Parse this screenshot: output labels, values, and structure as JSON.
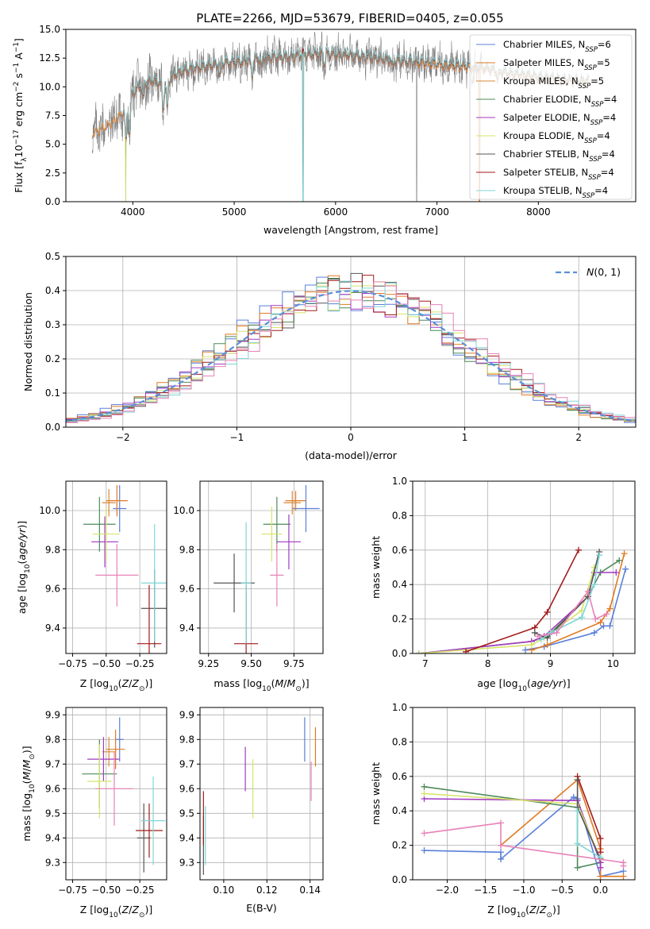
{
  "figure": {
    "title": "PLATE=2266, MJD=53679, FIBERID=0405, z=0.055"
  },
  "colors": {
    "chab_miles": "#5a7fd8",
    "salp_miles": "#e07a22",
    "krou_miles": "#d98a3a",
    "chab_elodie": "#4f8a5b",
    "salp_elodie": "#a33ac2",
    "krou_elodie": "#d7e36a",
    "chab_stelib": "#555555",
    "salp_stelib": "#a31a1a",
    "krou_stelib": "#7fd6d6",
    "pink": "#e882b8",
    "data": "#808080",
    "gaussian": "#5b8fd8"
  },
  "chart_data": [
    {
      "id": "spectrum",
      "type": "line",
      "title": "PLATE=2266, MJD=53679, FIBERID=0405, z=0.055",
      "xlabel": "wavelength [Angstrom, rest frame]",
      "ylabel": "Flux [f_λ 10^-17 erg cm^-2 s^-1 A^-1]",
      "xlim": [
        3340,
        8960
      ],
      "ylim": [
        0,
        15
      ],
      "xticks": [
        4000,
        5000,
        6000,
        7000,
        8000
      ],
      "yticks": [
        0.0,
        2.5,
        5.0,
        7.5,
        10.0,
        12.5,
        15.0
      ],
      "grid": false,
      "legend": "top-right",
      "legend_entries": [
        "Chabrier MILES, N_SSP=6",
        "Salpeter MILES, N_SSP=5",
        "Kroupa MILES, N_SSP=5",
        "Chabrier ELODIE, N_SSP=4",
        "Salpeter ELODIE, N_SSP=4",
        "Kroupa ELODIE, N_SSP=4",
        "Chabrier STELIB, N_SSP=4",
        "Salpeter STELIB, N_SSP=4",
        "Kroupa STELIB, N_SSP=4"
      ],
      "continuum": [
        [
          3600,
          6.0
        ],
        [
          3700,
          6.5
        ],
        [
          3800,
          7.0
        ],
        [
          3900,
          7.8
        ],
        [
          4000,
          9.5
        ],
        [
          4100,
          10.3
        ],
        [
          4200,
          10.6
        ],
        [
          4300,
          10.2
        ],
        [
          4400,
          11.0
        ],
        [
          4500,
          11.4
        ],
        [
          4700,
          11.8
        ],
        [
          4900,
          12.1
        ],
        [
          5100,
          12.2
        ],
        [
          5300,
          12.6
        ],
        [
          5500,
          12.6
        ],
        [
          5700,
          12.8
        ],
        [
          5900,
          12.9
        ],
        [
          6100,
          12.8
        ],
        [
          6300,
          12.6
        ],
        [
          6500,
          12.4
        ],
        [
          6700,
          12.2
        ],
        [
          6900,
          12.1
        ],
        [
          7100,
          11.9
        ],
        [
          7300,
          11.8
        ],
        [
          7500,
          11.6
        ],
        [
          7700,
          11.2
        ],
        [
          7900,
          11.0
        ],
        [
          8100,
          10.8
        ],
        [
          8300,
          10.6
        ],
        [
          8500,
          10.5
        ],
        [
          8700,
          10.6
        ]
      ],
      "dropouts": [
        3930,
        5680,
        6800,
        7420
      ]
    },
    {
      "id": "residuals",
      "type": "line",
      "xlabel": "(data-model)/error",
      "ylabel": "Normed distribution",
      "xlim": [
        -2.5,
        2.5
      ],
      "ylim": [
        0.0,
        0.5
      ],
      "xticks": [
        -2,
        -1,
        0,
        1,
        2
      ],
      "yticks": [
        0.0,
        0.1,
        0.2,
        0.3,
        0.4,
        0.5
      ],
      "grid": true,
      "legend": "top-right",
      "legend_entries": [
        "N(0,1)"
      ],
      "bin_width": 0.1
    },
    {
      "id": "age_vs_Z",
      "type": "scatter",
      "xlabel": "Z [log10(Z/Z⊙)]",
      "ylabel": "age [log10(age/yr)]",
      "xlim": [
        -0.8,
        -0.05
      ],
      "ylim": [
        9.27,
        10.15
      ],
      "xticks": [
        -0.75,
        -0.5,
        -0.25
      ],
      "yticks": [
        9.4,
        9.6,
        9.8,
        10.0
      ],
      "grid": true,
      "points": [
        {
          "c": "chab_miles",
          "x": -0.4,
          "y": 10.01,
          "ex": 0.05,
          "ey": 0.12
        },
        {
          "c": "salp_miles",
          "x": -0.42,
          "y": 10.05,
          "ex": 0.08,
          "ey": 0.08
        },
        {
          "c": "krou_miles",
          "x": -0.48,
          "y": 10.04,
          "ex": 0.05,
          "ey": 0.07
        },
        {
          "c": "chab_elodie",
          "x": -0.55,
          "y": 9.93,
          "ex": 0.12,
          "ey": 0.14
        },
        {
          "c": "salp_elodie",
          "x": -0.51,
          "y": 9.84,
          "ex": 0.1,
          "ey": 0.13
        },
        {
          "c": "krou_elodie",
          "x": -0.5,
          "y": 9.88,
          "ex": 0.1,
          "ey": 0.14
        },
        {
          "c": "chab_stelib",
          "x": -0.14,
          "y": 9.5,
          "ex": 0.1,
          "ey": 0.2
        },
        {
          "c": "salp_stelib",
          "x": -0.18,
          "y": 9.32,
          "ex": 0.09,
          "ey": 0.3
        },
        {
          "c": "krou_stelib",
          "x": -0.14,
          "y": 9.63,
          "ex": 0.1,
          "ey": 0.3
        },
        {
          "c": "pink",
          "x": -0.42,
          "y": 9.67,
          "ex": 0.16,
          "ey": 0.16
        }
      ]
    },
    {
      "id": "age_vs_mass",
      "type": "scatter",
      "xlabel": "mass [log10(M/M⊙)]",
      "ylabel": "",
      "xlim": [
        9.2,
        9.92
      ],
      "ylim": [
        9.27,
        10.15
      ],
      "xticks": [
        9.25,
        9.5,
        9.75
      ],
      "yticks": [
        9.4,
        9.6,
        9.8,
        10.0
      ],
      "grid": true,
      "points": [
        {
          "c": "chab_miles",
          "x": 9.82,
          "y": 10.01,
          "ex": 0.08,
          "ey": 0.12
        },
        {
          "c": "salp_miles",
          "x": 9.76,
          "y": 10.05,
          "ex": 0.06,
          "ey": 0.05
        },
        {
          "c": "krou_miles",
          "x": 9.74,
          "y": 10.04,
          "ex": 0.05,
          "ey": 0.06
        },
        {
          "c": "chab_elodie",
          "x": 9.65,
          "y": 9.93,
          "ex": 0.08,
          "ey": 0.14
        },
        {
          "c": "salp_elodie",
          "x": 9.72,
          "y": 9.84,
          "ex": 0.07,
          "ey": 0.14
        },
        {
          "c": "krou_elodie",
          "x": 9.62,
          "y": 9.88,
          "ex": 0.06,
          "ey": 0.14
        },
        {
          "c": "chab_stelib",
          "x": 9.4,
          "y": 9.63,
          "ex": 0.12,
          "ey": 0.15
        },
        {
          "c": "salp_stelib",
          "x": 9.47,
          "y": 9.32,
          "ex": 0.07,
          "ey": 0.3
        },
        {
          "c": "krou_stelib",
          "x": 9.47,
          "y": 9.63,
          "ex": 0.03,
          "ey": 0.31
        },
        {
          "c": "pink",
          "x": 9.65,
          "y": 9.67,
          "ex": 0.04,
          "ey": 0.16
        }
      ]
    },
    {
      "id": "mass_weight_vs_age",
      "type": "line",
      "xlabel": "age [log10(age/yr)]",
      "ylabel": "mass weight",
      "xlim": [
        6.8,
        10.35
      ],
      "ylim": [
        0.0,
        1.0
      ],
      "xticks": [
        7,
        8,
        9,
        10
      ],
      "yticks": [
        0.0,
        0.2,
        0.4,
        0.6,
        0.8,
        1.0
      ],
      "grid": true,
      "series": [
        {
          "c": "chab_miles",
          "pts": [
            [
              8.6,
              0.02
            ],
            [
              8.9,
              0.04
            ],
            [
              9.7,
              0.12
            ],
            [
              9.85,
              0.16
            ],
            [
              9.95,
              0.16
            ],
            [
              10.2,
              0.49
            ]
          ]
        },
        {
          "c": "salp_miles",
          "pts": [
            [
              8.7,
              0.02
            ],
            [
              8.95,
              0.05
            ],
            [
              9.8,
              0.18
            ],
            [
              9.95,
              0.26
            ],
            [
              10.18,
              0.58
            ]
          ]
        },
        {
          "c": "chab_elodie",
          "pts": [
            [
              6.9,
              0.0
            ],
            [
              8.7,
              0.07
            ],
            [
              8.95,
              0.1
            ],
            [
              9.6,
              0.33
            ],
            [
              9.8,
              0.47
            ],
            [
              10.1,
              0.54
            ]
          ]
        },
        {
          "c": "salp_elodie",
          "pts": [
            [
              6.9,
              0.0
            ],
            [
              8.7,
              0.07
            ],
            [
              8.9,
              0.1
            ],
            [
              9.6,
              0.33
            ],
            [
              9.7,
              0.47
            ],
            [
              10.05,
              0.47
            ]
          ]
        },
        {
          "c": "krou_elodie",
          "pts": [
            [
              6.9,
              0.0
            ],
            [
              8.7,
              0.05
            ],
            [
              8.9,
              0.09
            ],
            [
              9.5,
              0.25
            ],
            [
              9.7,
              0.5
            ]
          ]
        },
        {
          "c": "salp_stelib",
          "pts": [
            [
              7.65,
              0.01
            ],
            [
              8.75,
              0.15
            ],
            [
              8.95,
              0.24
            ],
            [
              9.45,
              0.6
            ]
          ]
        },
        {
          "c": "chab_stelib",
          "pts": [
            [
              8.75,
              0.12
            ],
            [
              8.95,
              0.09
            ],
            [
              9.6,
              0.33
            ],
            [
              9.78,
              0.59
            ]
          ]
        },
        {
          "c": "krou_stelib",
          "pts": [
            [
              8.85,
              0.08
            ],
            [
              9.0,
              0.12
            ],
            [
              9.5,
              0.21
            ],
            [
              9.7,
              0.4
            ],
            [
              9.78,
              0.57
            ]
          ]
        },
        {
          "c": "pink",
          "pts": [
            [
              8.8,
              0.1
            ],
            [
              9.1,
              0.12
            ],
            [
              9.6,
              0.36
            ],
            [
              9.72,
              0.2
            ],
            [
              9.9,
              0.23
            ]
          ]
        }
      ]
    },
    {
      "id": "mass_vs_Z",
      "type": "scatter",
      "xlabel": "Z [log10(Z/Z⊙)]",
      "ylabel": "mass [log10(M/M⊙)]",
      "xlim": [
        -0.8,
        -0.05
      ],
      "ylim": [
        9.23,
        9.93
      ],
      "xticks": [
        -0.75,
        -0.5,
        -0.25
      ],
      "yticks": [
        9.3,
        9.4,
        9.5,
        9.6,
        9.7,
        9.8,
        9.9
      ],
      "grid": true,
      "points": [
        {
          "c": "chab_miles",
          "x": -0.4,
          "y": 9.8,
          "ex": 0.03,
          "ey": 0.09
        },
        {
          "c": "salp_miles",
          "x": -0.43,
          "y": 9.76,
          "ex": 0.07,
          "ey": 0.08
        },
        {
          "c": "krou_miles",
          "x": -0.48,
          "y": 9.75,
          "ex": 0.05,
          "ey": 0.06
        },
        {
          "c": "chab_elodie",
          "x": -0.55,
          "y": 9.66,
          "ex": 0.13,
          "ey": 0.14
        },
        {
          "c": "salp_elodie",
          "x": -0.52,
          "y": 9.72,
          "ex": 0.12,
          "ey": 0.09
        },
        {
          "c": "krou_elodie",
          "x": -0.55,
          "y": 9.63,
          "ex": 0.09,
          "ey": 0.15
        },
        {
          "c": "chab_stelib",
          "x": -0.22,
          "y": 9.4,
          "ex": 0.05,
          "ey": 0.14
        },
        {
          "c": "salp_stelib",
          "x": -0.18,
          "y": 9.43,
          "ex": 0.1,
          "ey": 0.11
        },
        {
          "c": "krou_stelib",
          "x": -0.15,
          "y": 9.47,
          "ex": 0.09,
          "ey": 0.18
        },
        {
          "c": "pink",
          "x": -0.44,
          "y": 9.6,
          "ex": 0.14,
          "ey": 0.15
        }
      ]
    },
    {
      "id": "mass_vs_ebv",
      "type": "scatter",
      "xlabel": "E(B-V)",
      "ylabel": "",
      "xlim": [
        0.089,
        0.146
      ],
      "ylim": [
        9.23,
        9.93
      ],
      "xticks": [
        0.1,
        0.12,
        0.14
      ],
      "yticks": [
        9.3,
        9.4,
        9.5,
        9.6,
        9.7,
        9.8,
        9.9
      ],
      "grid": true,
      "points": [
        {
          "c": "chab_miles",
          "x": 0.1375,
          "y": 9.8,
          "ex": 0,
          "ey": 0.09
        },
        {
          "c": "salp_miles",
          "x": 0.1425,
          "y": 9.77,
          "ex": 0,
          "ey": 0.08
        },
        {
          "c": "salp_elodie",
          "x": 0.11,
          "y": 9.68,
          "ex": 0,
          "ey": 0.09
        },
        {
          "c": "krou_elodie",
          "x": 0.1135,
          "y": 9.6,
          "ex": 0,
          "ey": 0.12
        },
        {
          "c": "chab_stelib",
          "x": 0.0906,
          "y": 9.37,
          "ex": 0,
          "ey": 0.12
        },
        {
          "c": "salp_stelib",
          "x": 0.0906,
          "y": 9.48,
          "ex": 0,
          "ey": 0.11
        },
        {
          "c": "krou_stelib",
          "x": 0.0915,
          "y": 9.41,
          "ex": 0,
          "ey": 0.12
        },
        {
          "c": "pink",
          "x": 0.1405,
          "y": 9.63,
          "ex": 0,
          "ey": 0.08
        }
      ]
    },
    {
      "id": "mass_weight_vs_Z",
      "type": "line",
      "xlabel": "Z [log10(Z/Z⊙)]",
      "ylabel": "mass weight",
      "xlim": [
        -2.45,
        0.45
      ],
      "ylim": [
        0.0,
        1.0
      ],
      "xticks": [
        -2.0,
        -1.5,
        -1.0,
        -0.5,
        0.0
      ],
      "yticks": [
        0.0,
        0.2,
        0.4,
        0.6,
        0.8,
        1.0
      ],
      "grid": true,
      "series": [
        {
          "c": "chab_miles",
          "pts": [
            [
              -2.3,
              0.17
            ],
            [
              -1.3,
              0.16
            ],
            [
              -1.3,
              0.12
            ],
            [
              -0.35,
              0.48
            ],
            [
              -0.3,
              0.47
            ],
            [
              0.0,
              0.02
            ],
            [
              0.3,
              0.05
            ]
          ]
        },
        {
          "c": "salp_miles",
          "pts": [
            [
              -1.3,
              0.2
            ],
            [
              -0.3,
              0.58
            ],
            [
              0.0,
              0.18
            ],
            [
              0.0,
              0.02
            ],
            [
              0.3,
              0.02
            ]
          ]
        },
        {
          "c": "chab_elodie",
          "pts": [
            [
              -2.3,
              0.54
            ],
            [
              -0.3,
              0.42
            ],
            [
              -0.3,
              0.07
            ],
            [
              0.0,
              0.1
            ]
          ]
        },
        {
          "c": "salp_elodie",
          "pts": [
            [
              -2.3,
              0.47
            ],
            [
              -0.3,
              0.46
            ],
            [
              0.0,
              0.1
            ],
            [
              0.0,
              0.07
            ]
          ]
        },
        {
          "c": "krou_elodie",
          "pts": [
            [
              -2.3,
              0.5
            ],
            [
              -0.3,
              0.44
            ],
            [
              0.0,
              0.12
            ]
          ]
        },
        {
          "c": "salp_stelib",
          "pts": [
            [
              -0.3,
              0.6
            ],
            [
              0.0,
              0.24
            ],
            [
              0.0,
              0.16
            ]
          ]
        },
        {
          "c": "chab_stelib",
          "pts": [
            [
              -0.3,
              0.58
            ],
            [
              -0.3,
              0.42
            ],
            [
              0.0,
              0.12
            ]
          ]
        },
        {
          "c": "krou_stelib",
          "pts": [
            [
              -0.3,
              0.4
            ],
            [
              -0.3,
              0.21
            ],
            [
              0.0,
              0.13
            ]
          ]
        },
        {
          "c": "pink",
          "pts": [
            [
              -2.3,
              0.27
            ],
            [
              -1.3,
              0.33
            ],
            [
              -1.3,
              0.2
            ],
            [
              0.3,
              0.1
            ],
            [
              0.3,
              0.08
            ]
          ]
        }
      ]
    }
  ]
}
